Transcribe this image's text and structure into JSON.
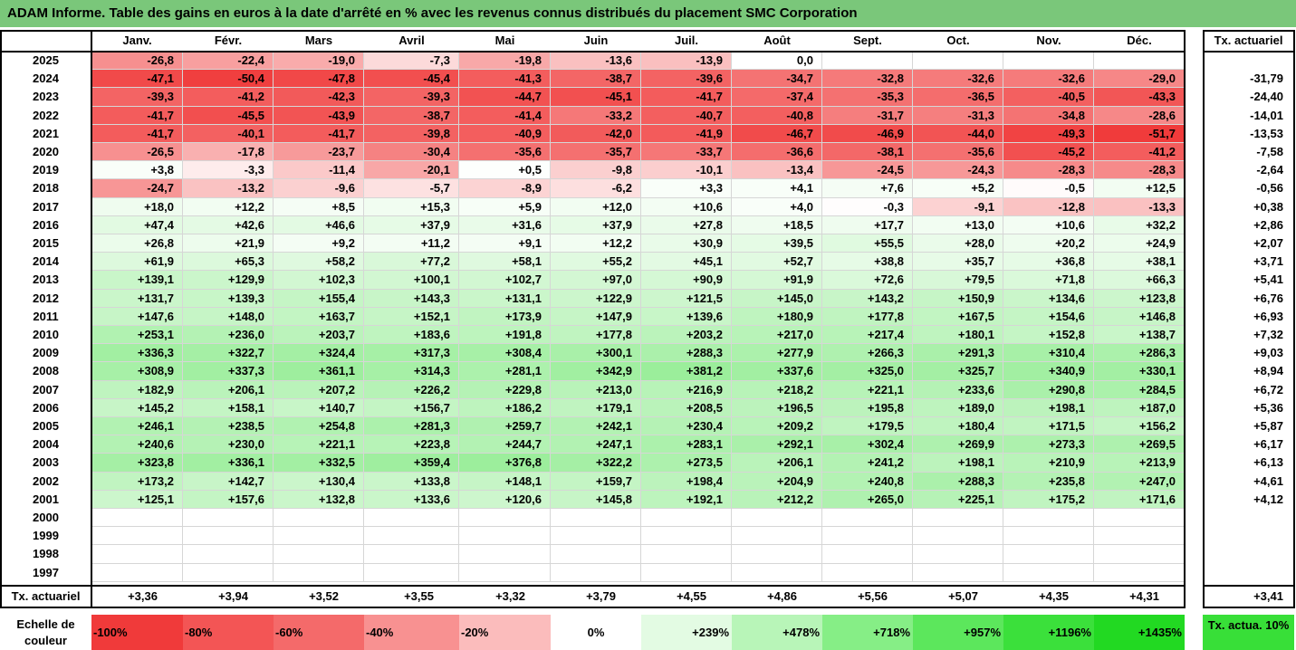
{
  "title": "ADAM Informe. Table des gains en euros à la date d'arrêté en % avec les revenus connus distribués du placement SMC Corporation",
  "months": [
    "Janv.",
    "Févr.",
    "Mars",
    "Avril",
    "Mai",
    "Juin",
    "Juil.",
    "Août",
    "Sept.",
    "Oct.",
    "Nov.",
    "Déc."
  ],
  "tx_header": "Tx. actuariel",
  "rows": [
    {
      "year": "2025",
      "values": [
        "-26,8",
        "-22,4",
        "-19,0",
        "-7,3",
        "-19,8",
        "-13,6",
        "-13,9",
        "0,0",
        "",
        "",
        "",
        ""
      ],
      "tx": ""
    },
    {
      "year": "2024",
      "values": [
        "-47,1",
        "-50,4",
        "-47,8",
        "-45,4",
        "-41,3",
        "-38,7",
        "-39,6",
        "-34,7",
        "-32,8",
        "-32,6",
        "-32,6",
        "-29,0"
      ],
      "tx": "-31,79"
    },
    {
      "year": "2023",
      "values": [
        "-39,3",
        "-41,2",
        "-42,3",
        "-39,3",
        "-44,7",
        "-45,1",
        "-41,7",
        "-37,4",
        "-35,3",
        "-36,5",
        "-40,5",
        "-43,3"
      ],
      "tx": "-24,40"
    },
    {
      "year": "2022",
      "values": [
        "-41,7",
        "-45,5",
        "-43,9",
        "-38,7",
        "-41,4",
        "-33,2",
        "-40,7",
        "-40,8",
        "-31,7",
        "-31,3",
        "-34,8",
        "-28,6"
      ],
      "tx": "-14,01"
    },
    {
      "year": "2021",
      "values": [
        "-41,7",
        "-40,1",
        "-41,7",
        "-39,8",
        "-40,9",
        "-42,0",
        "-41,9",
        "-46,7",
        "-46,9",
        "-44,0",
        "-49,3",
        "-51,7"
      ],
      "tx": "-13,53"
    },
    {
      "year": "2020",
      "values": [
        "-26,5",
        "-17,8",
        "-23,7",
        "-30,4",
        "-35,6",
        "-35,7",
        "-33,7",
        "-36,6",
        "-38,1",
        "-35,6",
        "-45,2",
        "-41,2"
      ],
      "tx": "-7,58"
    },
    {
      "year": "2019",
      "values": [
        "+3,8",
        "-3,3",
        "-11,4",
        "-20,1",
        "+0,5",
        "-9,8",
        "-10,1",
        "-13,4",
        "-24,5",
        "-24,3",
        "-28,3",
        "-28,3"
      ],
      "tx": "-2,64"
    },
    {
      "year": "2018",
      "values": [
        "-24,7",
        "-13,2",
        "-9,6",
        "-5,7",
        "-8,9",
        "-6,2",
        "+3,3",
        "+4,1",
        "+7,6",
        "+5,2",
        "-0,5",
        "+12,5"
      ],
      "tx": "-0,56"
    },
    {
      "year": "2017",
      "values": [
        "+18,0",
        "+12,2",
        "+8,5",
        "+15,3",
        "+5,9",
        "+12,0",
        "+10,6",
        "+4,0",
        "-0,3",
        "-9,1",
        "-12,8",
        "-13,3"
      ],
      "tx": "+0,38"
    },
    {
      "year": "2016",
      "values": [
        "+47,4",
        "+42,6",
        "+46,6",
        "+37,9",
        "+31,6",
        "+37,9",
        "+27,8",
        "+18,5",
        "+17,7",
        "+13,0",
        "+10,6",
        "+32,2"
      ],
      "tx": "+2,86"
    },
    {
      "year": "2015",
      "values": [
        "+26,8",
        "+21,9",
        "+9,2",
        "+11,2",
        "+9,1",
        "+12,2",
        "+30,9",
        "+39,5",
        "+55,5",
        "+28,0",
        "+20,2",
        "+24,9"
      ],
      "tx": "+2,07"
    },
    {
      "year": "2014",
      "values": [
        "+61,9",
        "+65,3",
        "+58,2",
        "+77,2",
        "+58,1",
        "+55,2",
        "+45,1",
        "+52,7",
        "+38,8",
        "+35,7",
        "+36,8",
        "+38,1"
      ],
      "tx": "+3,71"
    },
    {
      "year": "2013",
      "values": [
        "+139,1",
        "+129,9",
        "+102,3",
        "+100,1",
        "+102,7",
        "+97,0",
        "+90,9",
        "+91,9",
        "+72,6",
        "+79,5",
        "+71,8",
        "+66,3"
      ],
      "tx": "+5,41"
    },
    {
      "year": "2012",
      "values": [
        "+131,7",
        "+139,3",
        "+155,4",
        "+143,3",
        "+131,1",
        "+122,9",
        "+121,5",
        "+145,0",
        "+143,2",
        "+150,9",
        "+134,6",
        "+123,8"
      ],
      "tx": "+6,76"
    },
    {
      "year": "2011",
      "values": [
        "+147,6",
        "+148,0",
        "+163,7",
        "+152,1",
        "+173,9",
        "+147,9",
        "+139,6",
        "+180,9",
        "+177,8",
        "+167,5",
        "+154,6",
        "+146,8"
      ],
      "tx": "+6,93"
    },
    {
      "year": "2010",
      "values": [
        "+253,1",
        "+236,0",
        "+203,7",
        "+183,6",
        "+191,8",
        "+177,8",
        "+203,2",
        "+217,0",
        "+217,4",
        "+180,1",
        "+152,8",
        "+138,7"
      ],
      "tx": "+7,32"
    },
    {
      "year": "2009",
      "values": [
        "+336,3",
        "+322,7",
        "+324,4",
        "+317,3",
        "+308,4",
        "+300,1",
        "+288,3",
        "+277,9",
        "+266,3",
        "+291,3",
        "+310,4",
        "+286,3"
      ],
      "tx": "+9,03"
    },
    {
      "year": "2008",
      "values": [
        "+308,9",
        "+337,3",
        "+361,1",
        "+314,3",
        "+281,1",
        "+342,9",
        "+381,2",
        "+337,6",
        "+325,0",
        "+325,7",
        "+340,9",
        "+330,1"
      ],
      "tx": "+8,94"
    },
    {
      "year": "2007",
      "values": [
        "+182,9",
        "+206,1",
        "+207,2",
        "+226,2",
        "+229,8",
        "+213,0",
        "+216,9",
        "+218,2",
        "+221,1",
        "+233,6",
        "+290,8",
        "+284,5"
      ],
      "tx": "+6,72"
    },
    {
      "year": "2006",
      "values": [
        "+145,2",
        "+158,1",
        "+140,7",
        "+156,7",
        "+186,2",
        "+179,1",
        "+208,5",
        "+196,5",
        "+195,8",
        "+189,0",
        "+198,1",
        "+187,0"
      ],
      "tx": "+5,36"
    },
    {
      "year": "2005",
      "values": [
        "+246,1",
        "+238,5",
        "+254,8",
        "+281,3",
        "+259,7",
        "+242,1",
        "+230,4",
        "+209,2",
        "+179,5",
        "+180,4",
        "+171,5",
        "+156,2"
      ],
      "tx": "+5,87"
    },
    {
      "year": "2004",
      "values": [
        "+240,6",
        "+230,0",
        "+221,1",
        "+223,8",
        "+244,7",
        "+247,1",
        "+283,1",
        "+292,1",
        "+302,4",
        "+269,9",
        "+273,3",
        "+269,5"
      ],
      "tx": "+6,17"
    },
    {
      "year": "2003",
      "values": [
        "+323,8",
        "+336,1",
        "+332,5",
        "+359,4",
        "+376,8",
        "+322,2",
        "+273,5",
        "+206,1",
        "+241,2",
        "+198,1",
        "+210,9",
        "+213,9"
      ],
      "tx": "+6,13"
    },
    {
      "year": "2002",
      "values": [
        "+173,2",
        "+142,7",
        "+130,4",
        "+133,8",
        "+148,1",
        "+159,7",
        "+198,4",
        "+204,9",
        "+240,8",
        "+288,3",
        "+235,8",
        "+247,0"
      ],
      "tx": "+4,61"
    },
    {
      "year": "2001",
      "values": [
        "+125,1",
        "+157,6",
        "+132,8",
        "+133,6",
        "+120,6",
        "+145,8",
        "+192,1",
        "+212,2",
        "+265,0",
        "+225,1",
        "+175,2",
        "+171,6"
      ],
      "tx": "+4,12"
    },
    {
      "year": "2000",
      "values": [
        "",
        "",
        "",
        "",
        "",
        "",
        "",
        "",
        "",
        "",
        "",
        ""
      ],
      "tx": ""
    },
    {
      "year": "1999",
      "values": [
        "",
        "",
        "",
        "",
        "",
        "",
        "",
        "",
        "",
        "",
        "",
        ""
      ],
      "tx": ""
    },
    {
      "year": "1998",
      "values": [
        "",
        "",
        "",
        "",
        "",
        "",
        "",
        "",
        "",
        "",
        "",
        ""
      ],
      "tx": ""
    },
    {
      "year": "1997",
      "values": [
        "",
        "",
        "",
        "",
        "",
        "",
        "",
        "",
        "",
        "",
        "",
        ""
      ],
      "tx": ""
    }
  ],
  "tx_row": {
    "label": "Tx. actuariel",
    "values": [
      "+3,36",
      "+3,94",
      "+3,52",
      "+3,55",
      "+3,32",
      "+3,79",
      "+4,55",
      "+4,86",
      "+5,56",
      "+5,07",
      "+4,35",
      "+4,31"
    ],
    "total": "+3,41"
  },
  "legend": {
    "label": "Echelle de couleur",
    "items": [
      {
        "text": "-100%",
        "color": "#f03a3a",
        "align": "neg"
      },
      {
        "text": "-80%",
        "color": "#f35555",
        "align": "neg"
      },
      {
        "text": "-60%",
        "color": "#f46a6a",
        "align": "neg"
      },
      {
        "text": "-40%",
        "color": "#f89191",
        "align": "neg"
      },
      {
        "text": "-20%",
        "color": "#fbbcbc",
        "align": "neg"
      },
      {
        "text": "0%",
        "color": "#ffffff",
        "align": "zero"
      },
      {
        "text": "+239%",
        "color": "#e3fbe3",
        "align": "pos"
      },
      {
        "text": "+478%",
        "color": "#b8f5b8",
        "align": "pos"
      },
      {
        "text": "+718%",
        "color": "#86ee86",
        "align": "pos"
      },
      {
        "text": "+957%",
        "color": "#5ce75c",
        "align": "pos"
      },
      {
        "text": "+1196%",
        "color": "#3be03b",
        "align": "pos"
      },
      {
        "text": "+1435%",
        "color": "#22d922",
        "align": "pos"
      }
    ],
    "tx_label": "Tx. actua. 10%",
    "tx_color": "#38df38"
  },
  "colors": {
    "title_bg": "#7ac77a",
    "neg_full": "#f03a3a",
    "pos_full": "#22d922"
  }
}
